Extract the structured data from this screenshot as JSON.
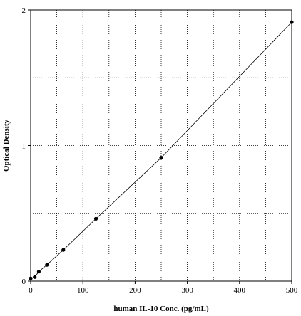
{
  "chart_data": {
    "type": "scatter",
    "title": "",
    "xlabel": "human IL-10 Conc. (pg/mL)",
    "ylabel": "Optical Density",
    "xlim": [
      0,
      500
    ],
    "ylim": [
      0,
      2
    ],
    "x_ticks": [
      0,
      100,
      200,
      300,
      400,
      500
    ],
    "y_ticks": [
      0,
      1,
      2
    ],
    "x_grid": [
      50,
      100,
      150,
      200,
      250,
      300,
      350,
      400,
      450
    ],
    "y_grid": [
      0.5,
      1,
      1.5
    ],
    "grid": true,
    "grid_style": "dotted",
    "legend": "none",
    "series": [
      {
        "points": [
          {
            "x": 0,
            "y": 0.02
          },
          {
            "x": 7.8,
            "y": 0.03
          },
          {
            "x": 15.6,
            "y": 0.07
          },
          {
            "x": 31.2,
            "y": 0.12
          },
          {
            "x": 62.5,
            "y": 0.23
          },
          {
            "x": 125,
            "y": 0.46
          },
          {
            "x": 250,
            "y": 0.91
          },
          {
            "x": 500,
            "y": 1.91
          }
        ],
        "fit_line": true,
        "color": "#000000"
      }
    ]
  }
}
